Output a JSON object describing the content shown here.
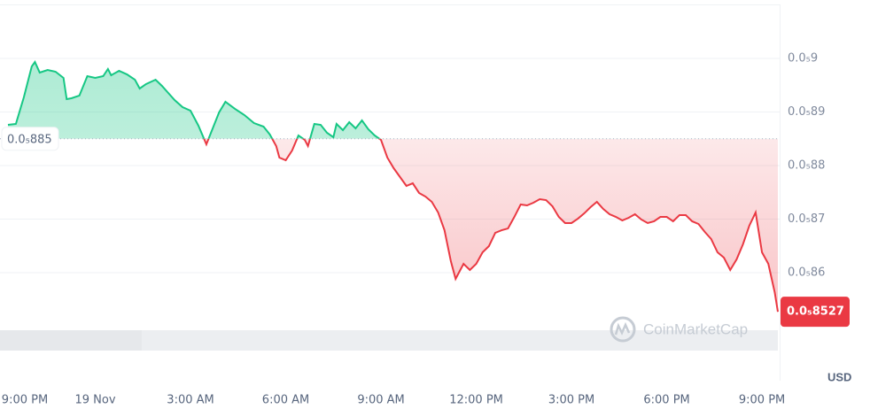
{
  "chart_data": {
    "type": "line",
    "unit_label": "USD",
    "watermark": "CoinMarketCap",
    "color_up": "#16c784",
    "color_down": "#ea3943",
    "reference": {
      "value": 8.85e-06,
      "label": "0.0₅885"
    },
    "last_price": {
      "value": 8.527e-06,
      "label": "0.0₅8527"
    },
    "xlim": [
      0,
      24.5
    ],
    "xticks": [
      {
        "value": 0,
        "label": "9:00 PM"
      },
      {
        "value": 3,
        "label": "19 Nov"
      },
      {
        "value": 6,
        "label": "3:00 AM"
      },
      {
        "value": 9,
        "label": "6:00 AM"
      },
      {
        "value": 12,
        "label": "9:00 AM"
      },
      {
        "value": 15,
        "label": "12:00 PM"
      },
      {
        "value": 18,
        "label": "3:00 PM"
      },
      {
        "value": 21,
        "label": "6:00 PM"
      },
      {
        "value": 24,
        "label": "9:00 PM"
      }
    ],
    "ylim": [
      8.5e-06,
      9.1e-06
    ],
    "yticks": [
      {
        "value": 9e-06,
        "label": "0.0₅9"
      },
      {
        "value": 8.9e-06,
        "label": "0.0₅89"
      },
      {
        "value": 8.8e-06,
        "label": "0.0₅88"
      },
      {
        "value": 8.7e-06,
        "label": "0.0₅87"
      },
      {
        "value": 8.6e-06,
        "label": "0.0₅86"
      }
    ],
    "grid": true,
    "x": [
      0,
      0.25,
      0.5,
      0.75,
      1.0,
      1.1,
      1.25,
      1.5,
      1.75,
      2.0,
      2.1,
      2.25,
      2.5,
      2.75,
      3.0,
      3.25,
      3.4,
      3.5,
      3.75,
      4.0,
      4.25,
      4.4,
      4.6,
      4.9,
      5.1,
      5.3,
      5.5,
      5.75,
      6.0,
      6.25,
      6.5,
      6.7,
      6.9,
      7.1,
      7.4,
      7.7,
      8.0,
      8.3,
      8.5,
      8.7,
      8.8,
      9.0,
      9.2,
      9.4,
      9.6,
      9.7,
      9.9,
      10.1,
      10.3,
      10.5,
      10.6,
      10.8,
      11.0,
      11.2,
      11.4,
      11.6,
      11.8,
      12.0,
      12.2,
      12.4,
      12.6,
      12.8,
      13.0,
      13.2,
      13.4,
      13.6,
      13.8,
      14.0,
      14.2,
      14.35,
      14.6,
      14.8,
      15.0,
      15.2,
      15.4,
      15.6,
      15.8,
      16.0,
      16.2,
      16.4,
      16.6,
      16.8,
      17.0,
      17.2,
      17.4,
      17.6,
      17.8,
      18.0,
      18.2,
      18.4,
      18.6,
      18.8,
      19.0,
      19.2,
      19.4,
      19.6,
      19.8,
      20.0,
      20.2,
      20.4,
      20.6,
      20.8,
      21.0,
      21.2,
      21.4,
      21.6,
      21.8,
      22.0,
      22.2,
      22.4,
      22.6,
      22.8,
      23.0,
      23.2,
      23.4,
      23.6,
      23.8,
      24.0,
      24.2,
      24.4,
      24.5
    ],
    "values": [
      8.8942e-06,
      8.876e-06,
      8.8777e-06,
      8.9273e-06,
      8.9851e-06,
      8.9934e-06,
      8.9736e-06,
      8.9785e-06,
      8.9752e-06,
      8.9636e-06,
      8.924e-06,
      8.9256e-06,
      8.9306e-06,
      8.9669e-06,
      8.9636e-06,
      8.9669e-06,
      8.9802e-06,
      8.9686e-06,
      8.9769e-06,
      8.9702e-06,
      8.9603e-06,
      8.9438e-06,
      8.9521e-06,
      8.9603e-06,
      8.9488e-06,
      8.9355e-06,
      8.9223e-06,
      8.9091e-06,
      8.9025e-06,
      8.8744e-06,
      8.8397e-06,
      8.8694e-06,
      8.8992e-06,
      8.919e-06,
      8.9058e-06,
      8.8942e-06,
      8.8793e-06,
      8.8727e-06,
      8.8579e-06,
      8.8364e-06,
      8.8149e-06,
      8.8099e-06,
      8.8281e-06,
      8.8562e-06,
      8.8479e-06,
      8.8364e-06,
      8.8777e-06,
      8.876e-06,
      8.8612e-06,
      8.8529e-06,
      8.8777e-06,
      8.8661e-06,
      8.881e-06,
      8.8694e-06,
      8.8843e-06,
      8.8678e-06,
      8.8562e-06,
      8.8479e-06,
      8.8149e-06,
      8.795e-06,
      8.7785e-06,
      8.762e-06,
      8.7669e-06,
      8.7488e-06,
      8.7421e-06,
      8.7322e-06,
      8.7124e-06,
      8.6793e-06,
      8.6215e-06,
      8.5884e-06,
      8.6165e-06,
      8.605e-06,
      8.6165e-06,
      8.638e-06,
      8.6496e-06,
      8.6744e-06,
      8.6793e-06,
      8.6826e-06,
      8.7041e-06,
      8.7273e-06,
      8.7256e-06,
      8.7306e-06,
      8.7372e-06,
      8.7355e-06,
      8.724e-06,
      8.7041e-06,
      8.6926e-06,
      8.6926e-06,
      8.7008e-06,
      8.7107e-06,
      8.7223e-06,
      8.7322e-06,
      8.719e-06,
      8.7091e-06,
      8.7041e-06,
      8.6975e-06,
      8.7025e-06,
      8.7091e-06,
      8.6992e-06,
      8.6926e-06,
      8.6959e-06,
      8.7041e-06,
      8.7041e-06,
      8.6959e-06,
      8.7074e-06,
      8.7074e-06,
      8.6959e-06,
      8.6909e-06,
      8.676e-06,
      8.6628e-06,
      8.638e-06,
      8.6281e-06,
      8.605e-06,
      8.6248e-06,
      8.6529e-06,
      8.6876e-06,
      8.7124e-06,
      8.638e-06,
      8.6165e-06,
      8.5636e-06,
      8.527e-06
    ]
  }
}
